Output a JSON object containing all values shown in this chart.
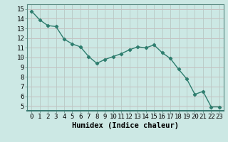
{
  "x": [
    0,
    1,
    2,
    3,
    4,
    5,
    6,
    7,
    8,
    9,
    10,
    11,
    12,
    13,
    14,
    15,
    16,
    17,
    18,
    19,
    20,
    21,
    22,
    23
  ],
  "y": [
    14.8,
    13.9,
    13.3,
    13.2,
    11.9,
    11.4,
    11.1,
    10.1,
    9.4,
    9.8,
    10.1,
    10.4,
    10.8,
    11.1,
    11.0,
    11.3,
    10.5,
    9.9,
    8.8,
    7.8,
    6.2,
    6.5,
    4.9,
    4.9
  ],
  "line_color": "#2e7d6e",
  "marker": "D",
  "marker_size": 2.2,
  "bg_color": "#cce8e4",
  "grid_color_h": "#c4b8b8",
  "grid_color_v": "#b8c8c4",
  "xlabel": "Humidex (Indice chaleur)",
  "xlim": [
    -0.5,
    23.5
  ],
  "ylim": [
    4.5,
    15.5
  ],
  "yticks": [
    5,
    6,
    7,
    8,
    9,
    10,
    11,
    12,
    13,
    14,
    15
  ],
  "xticks": [
    0,
    1,
    2,
    3,
    4,
    5,
    6,
    7,
    8,
    9,
    10,
    11,
    12,
    13,
    14,
    15,
    16,
    17,
    18,
    19,
    20,
    21,
    22,
    23
  ],
  "xlabel_fontsize": 7.5,
  "tick_fontsize": 6.5,
  "linewidth": 1.0
}
